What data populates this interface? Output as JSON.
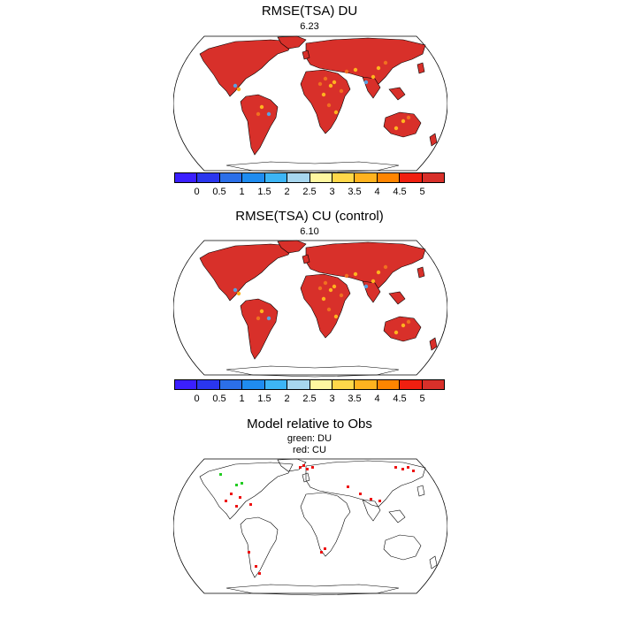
{
  "panels": [
    {
      "title": "RMSE(TSA) DU",
      "subtitle": "6.23"
    },
    {
      "title": "RMSE(TSA) CU (control)",
      "subtitle": "6.10"
    },
    {
      "title": "Model relative to Obs",
      "subtitle_lines": [
        "green: DU",
        "red: CU"
      ]
    }
  ],
  "colorbar": {
    "colors": [
      "#3b1fff",
      "#2a36ee",
      "#2b6fe8",
      "#1f8cf0",
      "#3db5f5",
      "#a7d6ee",
      "#fff7a0",
      "#ffd84a",
      "#ffb31f",
      "#ff8500",
      "#f01f10",
      "#d8302a"
    ],
    "labels": [
      "0",
      "0.5",
      "1",
      "1.5",
      "2",
      "2.5",
      "3",
      "3.5",
      "4",
      "4.5",
      "5"
    ]
  },
  "colors": {
    "land_fill": "#d8302a",
    "hot_spot": "#f07020",
    "warm_spot": "#ffb31f",
    "cool_spot": "#5aa0e0",
    "du_marker": "#22cc22",
    "cu_marker": "#ee1111"
  }
}
